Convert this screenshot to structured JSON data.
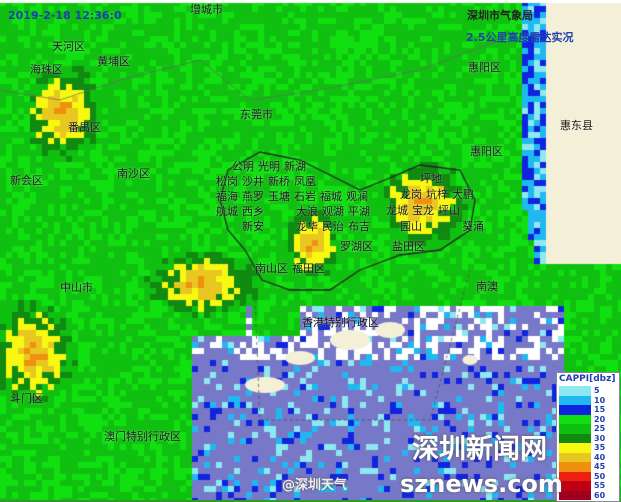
{
  "header": {
    "timestamp": "2019-2-18 12:36:0",
    "agency": "深圳市气象局",
    "subtitle": "2.5公里高度雷达实况"
  },
  "places": [
    {
      "name": "增城市"
    },
    {
      "name": "天河区"
    },
    {
      "name": "黄埔区"
    },
    {
      "name": "海珠区"
    },
    {
      "name": "番禺区"
    },
    {
      "name": "东莞市"
    },
    {
      "name": "惠阳区"
    },
    {
      "name": "惠东县"
    },
    {
      "name": "南沙区"
    },
    {
      "name": "新会区"
    },
    {
      "name": "中山市"
    },
    {
      "name": "斗门区"
    },
    {
      "name": "澳门特别行政区"
    },
    {
      "name": "香港特别行政区"
    },
    {
      "name": "惠阳区"
    },
    {
      "name": "光明"
    },
    {
      "name": "公明"
    },
    {
      "name": "新湖"
    },
    {
      "name": "松岗"
    },
    {
      "name": "沙井"
    },
    {
      "name": "新桥"
    },
    {
      "name": "凤凰"
    },
    {
      "name": "福海"
    },
    {
      "name": "燕罗"
    },
    {
      "name": "玉塘"
    },
    {
      "name": "石岩"
    },
    {
      "name": "航城"
    },
    {
      "name": "西乡"
    },
    {
      "name": "新安"
    },
    {
      "name": "南山区"
    },
    {
      "name": "福田区"
    },
    {
      "name": "福城"
    },
    {
      "name": "观澜"
    },
    {
      "name": "大浪"
    },
    {
      "name": "观湖"
    },
    {
      "name": "龙华"
    },
    {
      "name": "民治"
    },
    {
      "name": "平湖"
    },
    {
      "name": "布吉"
    },
    {
      "name": "罗湖区"
    },
    {
      "name": "坪地"
    },
    {
      "name": "龙岗"
    },
    {
      "name": "龙城"
    },
    {
      "name": "宝龙"
    },
    {
      "name": "园山"
    },
    {
      "name": "坪山"
    },
    {
      "name": "盐田区"
    },
    {
      "name": "葵涌"
    },
    {
      "name": "南澳"
    },
    {
      "name": "坑梓"
    },
    {
      "name": "大鹏"
    }
  ],
  "legend": {
    "title": "CAPPI[dbz]",
    "levels": [
      {
        "value": "5",
        "color": "#8ee8f0"
      },
      {
        "value": "10",
        "color": "#20b8f0"
      },
      {
        "value": "15",
        "color": "#1024e0"
      },
      {
        "value": "20",
        "color": "#10e010"
      },
      {
        "value": "25",
        "color": "#10c010"
      },
      {
        "value": "30",
        "color": "#108a10"
      },
      {
        "value": "35",
        "color": "#f8f810"
      },
      {
        "value": "40",
        "color": "#e8c820"
      },
      {
        "value": "45",
        "color": "#f09010"
      },
      {
        "value": "50",
        "color": "#f02010"
      },
      {
        "value": "55",
        "color": "#c00010"
      },
      {
        "value": "60",
        "color": "#a00020"
      }
    ]
  },
  "watermark": {
    "weibo": "@深圳天气",
    "site_cn": "深圳新闻网",
    "site_en": "sznews.com"
  },
  "colors": {
    "sea": "#7878c8",
    "land_clear": "#f4f0d8"
  }
}
